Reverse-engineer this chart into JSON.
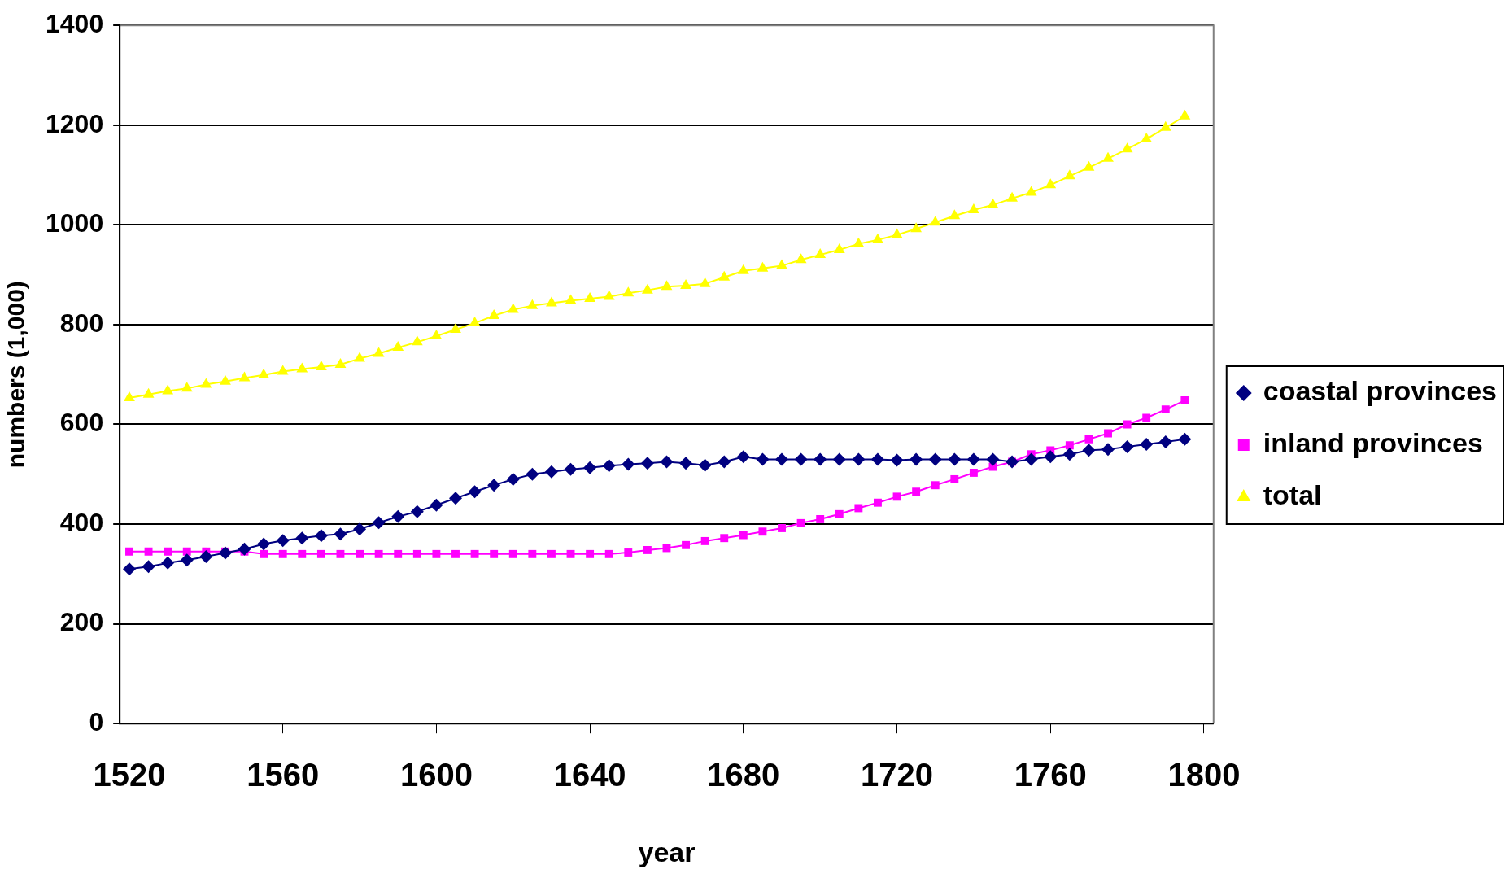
{
  "chart_data": {
    "type": "line",
    "xlabel": "year",
    "ylabel": "numbers (1,000)",
    "x": [
      1520,
      1525,
      1530,
      1535,
      1540,
      1545,
      1550,
      1555,
      1560,
      1565,
      1570,
      1575,
      1580,
      1585,
      1590,
      1595,
      1600,
      1605,
      1610,
      1615,
      1620,
      1625,
      1630,
      1635,
      1640,
      1645,
      1650,
      1655,
      1660,
      1665,
      1670,
      1675,
      1680,
      1685,
      1690,
      1695,
      1700,
      1705,
      1710,
      1715,
      1720,
      1725,
      1730,
      1735,
      1740,
      1745,
      1750,
      1755,
      1760,
      1765,
      1770,
      1775,
      1780,
      1785,
      1790,
      1795
    ],
    "series": [
      {
        "name": "coastal provinces",
        "color": "#000080",
        "marker": "diamond",
        "values": [
          310,
          315,
          322,
          328,
          335,
          342,
          350,
          360,
          367,
          372,
          377,
          380,
          390,
          403,
          415,
          425,
          438,
          452,
          465,
          478,
          490,
          500,
          505,
          510,
          513,
          517,
          520,
          522,
          525,
          522,
          518,
          525,
          535,
          530,
          530,
          530,
          530,
          530,
          530,
          530,
          528,
          530,
          530,
          530,
          530,
          530,
          525,
          530,
          535,
          540,
          548,
          550,
          555,
          560,
          565,
          570
        ]
      },
      {
        "name": "inland provinces",
        "color": "#ff00ff",
        "marker": "square",
        "values": [
          345,
          345,
          345,
          345,
          345,
          345,
          345,
          340,
          340,
          340,
          340,
          340,
          340,
          340,
          340,
          340,
          340,
          340,
          340,
          340,
          340,
          340,
          340,
          340,
          340,
          340,
          343,
          348,
          352,
          358,
          366,
          372,
          378,
          385,
          392,
          402,
          410,
          420,
          432,
          443,
          455,
          465,
          478,
          490,
          503,
          515,
          525,
          540,
          548,
          558,
          570,
          582,
          600,
          613,
          630,
          648
        ]
      },
      {
        "name": "total",
        "color": "#ffff00",
        "marker": "triangle",
        "values": [
          653,
          660,
          667,
          672,
          680,
          686,
          693,
          699,
          706,
          711,
          715,
          720,
          732,
          742,
          754,
          765,
          777,
          790,
          803,
          818,
          830,
          838,
          843,
          848,
          852,
          856,
          863,
          869,
          876,
          878,
          882,
          895,
          908,
          913,
          918,
          930,
          940,
          950,
          962,
          970,
          980,
          992,
          1005,
          1018,
          1030,
          1040,
          1053,
          1065,
          1080,
          1098,
          1115,
          1133,
          1152,
          1172,
          1195,
          1218
        ]
      }
    ],
    "xlim": [
      1517.5,
      1802.5
    ],
    "xticks": [
      1520,
      1560,
      1600,
      1640,
      1680,
      1720,
      1760,
      1800
    ],
    "ylim": [
      0,
      1400
    ],
    "yticks": [
      0,
      200,
      400,
      600,
      800,
      1000,
      1200,
      1400
    ],
    "grid": "y",
    "legend": "right",
    "line_style": "solid"
  }
}
